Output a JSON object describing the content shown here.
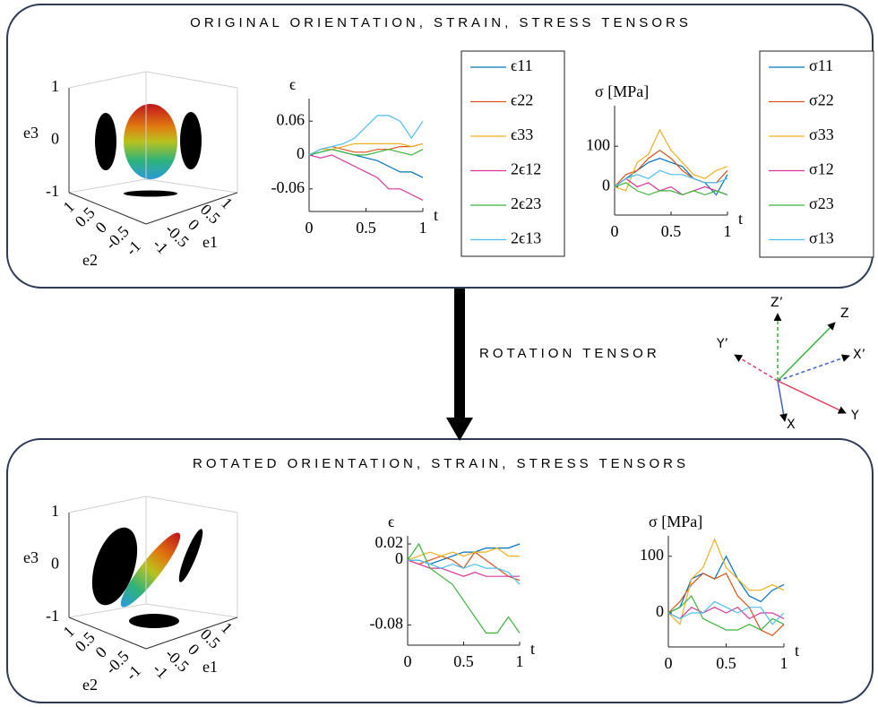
{
  "top_panel": {
    "title": "ORIGINAL ORIENTATION, STRAIN, STRESS TENSORS",
    "orientation_plot": {
      "z_label": "e3",
      "x_label": "e2",
      "y_label": "e1",
      "z_ticks": [
        1,
        0,
        -1
      ],
      "x_ticks": [
        1,
        0.5,
        0,
        -0.5,
        -1
      ],
      "y_ticks": [
        -1,
        -0.5,
        0,
        0.5,
        1
      ]
    },
    "strain_chart": {
      "type": "line",
      "ylabel": "ϵ",
      "xlabel": "t",
      "x": [
        0,
        0.1,
        0.2,
        0.3,
        0.4,
        0.5,
        0.6,
        0.7,
        0.8,
        0.9,
        1
      ],
      "xlim": [
        0,
        1
      ],
      "xticks": [
        0,
        0.5,
        1
      ],
      "ylim": [
        -0.1,
        0.1
      ],
      "yticks": [
        -0.06,
        0,
        0.06
      ],
      "series": [
        {
          "name": "ϵ11",
          "color": "#0072bd",
          "values": [
            0,
            0.005,
            0.01,
            0.005,
            0,
            -0.005,
            -0.01,
            -0.02,
            -0.03,
            -0.03,
            -0.04
          ]
        },
        {
          "name": "ϵ22",
          "color": "#d95319",
          "values": [
            0,
            0.01,
            0.015,
            0.01,
            0.005,
            0.005,
            0.01,
            0.01,
            0.015,
            0.015,
            0.02
          ]
        },
        {
          "name": "ϵ33",
          "color": "#edb120",
          "values": [
            0,
            0.01,
            0.01,
            0.015,
            0.02,
            0.02,
            0.02,
            0.02,
            0.02,
            0.015,
            0.02
          ]
        },
        {
          "name": "2ϵ12",
          "color": "#d9369b",
          "values": [
            0,
            -0.005,
            0,
            -0.01,
            -0.02,
            -0.03,
            -0.04,
            -0.06,
            -0.06,
            -0.07,
            -0.08
          ]
        },
        {
          "name": "2ϵ23",
          "color": "#3cb43c",
          "values": [
            0,
            0.005,
            0.01,
            0.005,
            0,
            0,
            0.005,
            0.01,
            0.005,
            0,
            0.01
          ]
        },
        {
          "name": "2ϵ13",
          "color": "#4dbeee",
          "values": [
            0,
            0.01,
            0.015,
            0.02,
            0.03,
            0.05,
            0.07,
            0.07,
            0.06,
            0.03,
            0.06
          ]
        }
      ]
    },
    "stress_chart": {
      "type": "line",
      "ylabel": "σ [MPa]",
      "xlabel": "t",
      "x": [
        0,
        0.1,
        0.2,
        0.3,
        0.4,
        0.5,
        0.6,
        0.7,
        0.8,
        0.9,
        1
      ],
      "xlim": [
        0,
        1
      ],
      "xticks": [
        0,
        0.5,
        1
      ],
      "ylim": [
        -70,
        200
      ],
      "yticks": [
        0,
        100
      ],
      "series": [
        {
          "name": "σ11",
          "color": "#0072bd",
          "values": [
            0,
            20,
            40,
            60,
            70,
            60,
            50,
            20,
            10,
            -20,
            30
          ]
        },
        {
          "name": "σ22",
          "color": "#d95319",
          "values": [
            0,
            30,
            40,
            70,
            90,
            70,
            40,
            20,
            10,
            10,
            40
          ]
        },
        {
          "name": "σ33",
          "color": "#edb120",
          "values": [
            0,
            -10,
            60,
            80,
            140,
            90,
            60,
            30,
            20,
            40,
            50
          ]
        },
        {
          "name": "σ12",
          "color": "#d9369b",
          "values": [
            0,
            20,
            0,
            10,
            -10,
            0,
            -20,
            -10,
            0,
            -10,
            -20
          ]
        },
        {
          "name": "σ23",
          "color": "#3cb43c",
          "values": [
            0,
            10,
            -10,
            -20,
            -10,
            -10,
            -20,
            -10,
            -20,
            -10,
            -20
          ]
        },
        {
          "name": "σ13",
          "color": "#4dbeee",
          "values": [
            0,
            20,
            30,
            20,
            40,
            30,
            30,
            20,
            10,
            10,
            20
          ]
        }
      ]
    }
  },
  "rotation_label": "ROTATION TENSOR",
  "frame_axes": {
    "labels": [
      "Z’",
      "Z",
      "Y’",
      "X’",
      "X",
      "Y"
    ]
  },
  "bottom_panel": {
    "title": "ROTATED ORIENTATION, STRAIN, STRESS TENSORS",
    "orientation_plot": {
      "z_label": "e3",
      "x_label": "e2",
      "y_label": "e1",
      "z_ticks": [
        1,
        0,
        -1
      ],
      "x_ticks": [
        1,
        0.5,
        0,
        -0.5,
        -1
      ],
      "y_ticks": [
        -1,
        -0.5,
        0,
        0.5,
        1
      ]
    },
    "strain_chart": {
      "type": "line",
      "ylabel": "ϵ",
      "xlabel": "t",
      "x": [
        0,
        0.1,
        0.2,
        0.3,
        0.4,
        0.5,
        0.6,
        0.7,
        0.8,
        0.9,
        1
      ],
      "xlim": [
        0,
        1
      ],
      "xticks": [
        0,
        0.5,
        1
      ],
      "ylim": [
        -0.105,
        0.03
      ],
      "yticks": [
        -0.08,
        0,
        0.02
      ],
      "series": [
        {
          "color": "#0072bd",
          "values": [
            0,
            0,
            -0.005,
            0,
            0.005,
            0.01,
            0.01,
            0.015,
            0.015,
            0.015,
            0.02
          ]
        },
        {
          "color": "#d95319",
          "values": [
            0,
            -0.005,
            0,
            0.005,
            0,
            -0.01,
            0.01,
            0,
            -0.01,
            -0.02,
            -0.025
          ]
        },
        {
          "color": "#edb120",
          "values": [
            0,
            0.005,
            0.01,
            0.005,
            0.01,
            0.005,
            0.01,
            0.01,
            0.015,
            0.005,
            0.005
          ]
        },
        {
          "color": "#d9369b",
          "values": [
            0,
            -0.005,
            -0.01,
            -0.01,
            -0.015,
            -0.02,
            -0.015,
            -0.02,
            -0.02,
            -0.02,
            -0.02
          ]
        },
        {
          "color": "#3cb43c",
          "values": [
            0,
            0.02,
            -0.01,
            -0.02,
            -0.03,
            -0.05,
            -0.07,
            -0.09,
            -0.09,
            -0.07,
            -0.09
          ]
        },
        {
          "color": "#4dbeee",
          "values": [
            0,
            0,
            -0.005,
            -0.01,
            -0.005,
            -0.01,
            -0.005,
            -0.01,
            -0.01,
            -0.015,
            -0.03
          ]
        }
      ]
    },
    "stress_chart": {
      "type": "line",
      "ylabel": "σ [MPa]",
      "xlabel": "t",
      "x": [
        0,
        0.1,
        0.2,
        0.3,
        0.4,
        0.5,
        0.6,
        0.7,
        0.8,
        0.9,
        1
      ],
      "xlim": [
        0,
        1
      ],
      "xticks": [
        0,
        0.5,
        1
      ],
      "ylim": [
        -60,
        136
      ],
      "yticks": [
        0,
        100
      ],
      "series": [
        {
          "color": "#0072bd",
          "values": [
            0,
            10,
            60,
            70,
            60,
            100,
            60,
            30,
            20,
            40,
            50
          ]
        },
        {
          "color": "#d95319",
          "values": [
            0,
            20,
            50,
            70,
            60,
            70,
            30,
            10,
            -30,
            -40,
            -20
          ]
        },
        {
          "color": "#edb120",
          "values": [
            0,
            -20,
            60,
            80,
            130,
            80,
            60,
            40,
            40,
            50,
            40
          ]
        },
        {
          "color": "#d9369b",
          "values": [
            0,
            -10,
            10,
            0,
            10,
            0,
            10,
            -10,
            0,
            0,
            -10
          ]
        },
        {
          "color": "#3cb43c",
          "values": [
            0,
            10,
            30,
            -10,
            -20,
            -30,
            -30,
            -20,
            -30,
            -10,
            -20
          ]
        },
        {
          "color": "#4dbeee",
          "values": [
            0,
            -10,
            0,
            0,
            20,
            10,
            0,
            10,
            10,
            -20,
            0
          ]
        }
      ]
    }
  }
}
